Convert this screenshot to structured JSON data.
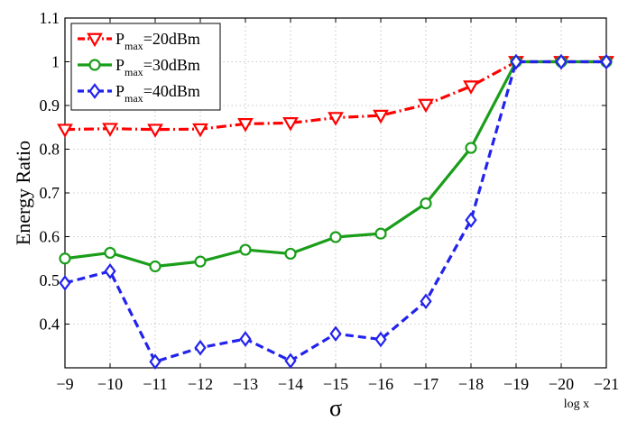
{
  "chart_data": {
    "type": "line",
    "xlabel": "σ",
    "ylabel": "Energy Ratio",
    "x": [
      -9,
      -10,
      -11,
      -12,
      -13,
      -14,
      -15,
      -16,
      -17,
      -18,
      -19,
      -20,
      -21
    ],
    "x_tick_labels": [
      "−9",
      "−10",
      "−11",
      "−12",
      "−13",
      "−14",
      "−15",
      "−16",
      "−17",
      "−18",
      "−19",
      "−20",
      "−21"
    ],
    "xlim": [
      -9,
      -21
    ],
    "ylim": [
      0.3,
      1.1
    ],
    "y_ticks": [
      0.4,
      0.5,
      0.6,
      0.7,
      0.8,
      0.9,
      1,
      1.1
    ],
    "y_tick_labels": [
      "0.4",
      "0.5",
      "0.6",
      "0.7",
      "0.8",
      "0.9",
      "1",
      "1.1"
    ],
    "grid": true,
    "legend_position": "top-left",
    "x_axis_note": "log x",
    "series": [
      {
        "name_main": "P",
        "name_sub": "max",
        "name_rest": "=20dBm",
        "color": "#ff0000",
        "marker": "triangle-down",
        "line_style": "dash-dot",
        "values": [
          0.845,
          0.847,
          0.845,
          0.846,
          0.858,
          0.86,
          0.872,
          0.877,
          0.902,
          0.944,
          1.0,
          1.0,
          1.0
        ]
      },
      {
        "name_main": "P",
        "name_sub": "max",
        "name_rest": "=30dBm",
        "color": "#1a9e1a",
        "marker": "circle",
        "line_style": "solid",
        "values": [
          0.55,
          0.563,
          0.532,
          0.543,
          0.57,
          0.561,
          0.599,
          0.607,
          0.676,
          0.803,
          1.0,
          1.0,
          1.0
        ]
      },
      {
        "name_main": "P",
        "name_sub": "max",
        "name_rest": "=40dBm",
        "color": "#2222ee",
        "marker": "diamond",
        "line_style": "dashed",
        "values": [
          0.494,
          0.521,
          0.314,
          0.346,
          0.366,
          0.316,
          0.378,
          0.365,
          0.452,
          0.638,
          1.0,
          1.0,
          1.0
        ]
      }
    ]
  }
}
